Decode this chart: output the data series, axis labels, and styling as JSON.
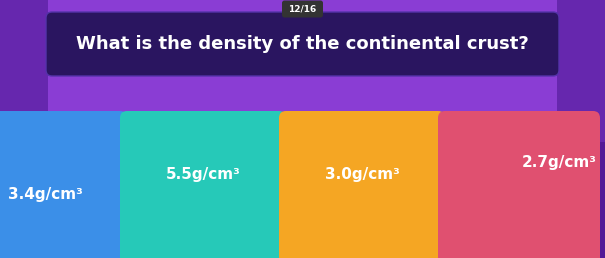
{
  "background_color": "#7b35c1",
  "question_text": "What is the density of the continental crust?",
  "counter_text": "12/16",
  "answers": [
    {
      "text": "3.4g/cm³",
      "color": "#3b8fe8"
    },
    {
      "text": "5.5g/cm³",
      "color": "#26c9b8"
    },
    {
      "text": "3.0g/cm³",
      "color": "#f5a623"
    },
    {
      "text": "2.7g/cm³",
      "color": "#e05070"
    }
  ],
  "question_box_color": "#2a1560",
  "question_text_color": "#ffffff",
  "counter_bg": "#333333",
  "counter_text_color": "#ffffff",
  "answer_text_color": "#ffffff",
  "answer_text_fontsize": 11,
  "question_fontsize": 13,
  "counter_fontsize": 6.5,
  "fig_w": 6.05,
  "fig_h": 2.58,
  "dpi": 100
}
